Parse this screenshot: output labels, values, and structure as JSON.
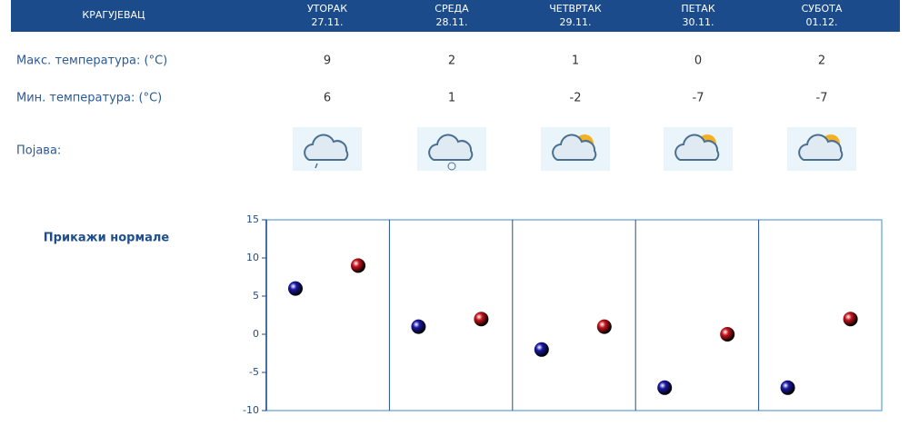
{
  "header": {
    "city": "КРАГУЈЕВАЦ",
    "days": [
      {
        "name": "УТОРАК",
        "date": "27.11."
      },
      {
        "name": "СРЕДА",
        "date": "28.11."
      },
      {
        "name": "ЧЕТВРТАК",
        "date": "29.11."
      },
      {
        "name": "ПЕТАК",
        "date": "30.11."
      },
      {
        "name": "СУБОТА",
        "date": "01.12."
      }
    ]
  },
  "phenomenon_label": "Појава:",
  "normals_link": "Прикажи нормале",
  "chart_data": {
    "type": "scatter",
    "series": [
      {
        "name": "Макс. температура: (°C)",
        "color": "#c8141e",
        "values": [
          9,
          2,
          1,
          0,
          2
        ]
      },
      {
        "name": "Мин. температура: (°C)",
        "color": "#1a1aa8",
        "values": [
          6,
          1,
          -2,
          -7,
          -7
        ]
      }
    ],
    "ylim": [
      -10,
      15
    ],
    "yticks": [
      -10,
      -5,
      0,
      5,
      10,
      15
    ],
    "grid": false
  }
}
